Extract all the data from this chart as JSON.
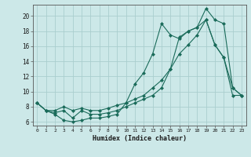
{
  "xlabel": "Humidex (Indice chaleur)",
  "bg_color": "#cce8e8",
  "grid_color": "#b0d4d4",
  "line_color": "#1a6b5a",
  "xlim": [
    -0.5,
    23.5
  ],
  "ylim": [
    5.5,
    21.5
  ],
  "xticks": [
    0,
    1,
    2,
    3,
    4,
    5,
    6,
    7,
    8,
    9,
    10,
    11,
    12,
    13,
    14,
    15,
    16,
    17,
    18,
    19,
    20,
    21,
    22,
    23
  ],
  "yticks": [
    6,
    8,
    10,
    12,
    14,
    16,
    18,
    20
  ],
  "series1_x": [
    0,
    1,
    2,
    3,
    4,
    5,
    6,
    7,
    8,
    9,
    10,
    11,
    12,
    13,
    14,
    15,
    16,
    17,
    18,
    19,
    20,
    21,
    22,
    23
  ],
  "series1_y": [
    8.5,
    7.5,
    7.0,
    6.2,
    6.0,
    6.2,
    6.5,
    6.5,
    6.7,
    7.0,
    8.5,
    11.0,
    12.5,
    15.0,
    19.0,
    17.5,
    17.0,
    18.0,
    18.5,
    21.0,
    19.5,
    19.0,
    10.5,
    9.5
  ],
  "series2_x": [
    0,
    1,
    2,
    3,
    4,
    5,
    6,
    7,
    8,
    9,
    10,
    11,
    12,
    13,
    14,
    15,
    16,
    17,
    18,
    19,
    20,
    21,
    22,
    23
  ],
  "series2_y": [
    8.5,
    7.5,
    7.2,
    7.5,
    6.5,
    7.5,
    7.0,
    7.0,
    7.2,
    7.5,
    8.0,
    8.5,
    9.0,
    9.5,
    10.5,
    13.0,
    17.2,
    18.0,
    18.5,
    19.5,
    16.2,
    14.5,
    10.5,
    9.5
  ],
  "series3_x": [
    0,
    1,
    2,
    3,
    4,
    5,
    6,
    7,
    8,
    9,
    10,
    11,
    12,
    13,
    14,
    15,
    16,
    17,
    18,
    19,
    20,
    21,
    22,
    23
  ],
  "series3_y": [
    8.5,
    7.5,
    7.5,
    8.0,
    7.5,
    7.8,
    7.5,
    7.5,
    7.8,
    8.2,
    8.5,
    9.0,
    9.5,
    10.5,
    11.5,
    13.0,
    15.0,
    16.2,
    17.5,
    19.5,
    16.2,
    14.5,
    9.5,
    9.5
  ]
}
